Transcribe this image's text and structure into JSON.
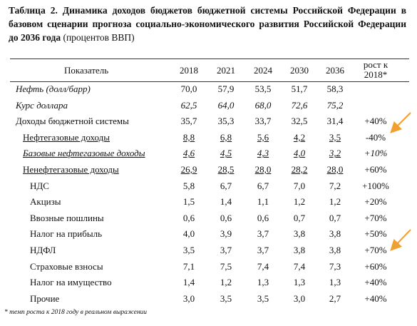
{
  "header": {
    "title": "Таблица 2. Динамика доходов бюджетов бюджетной системы Российской Федерации в базовом сценарии прогноза социально-экономического развития Российской Федерации до 2036 года",
    "units": "(процентов ВВП)"
  },
  "table": {
    "columns": [
      "Показатель",
      "2018",
      "2021",
      "2024",
      "2030",
      "2036",
      "рост к 2018*"
    ],
    "rows": [
      {
        "label": "Нефть (долл/барр)",
        "values": [
          "70,0",
          "57,9",
          "53,5",
          "51,7",
          "58,3"
        ]
      },
      {
        "label": "Курс доллара",
        "values": [
          "62,5",
          "64,0",
          "68,0",
          "72,6",
          "75,2"
        ]
      },
      {
        "label": "Доходы бюджетной системы",
        "values": [
          "35,7",
          "35,3",
          "33,7",
          "32,5",
          "31,4"
        ],
        "growth": "+40%"
      },
      {
        "label": "Нефтегазовые доходы",
        "values": [
          "8,8",
          "6,8",
          "5,6",
          "4,2",
          "3,5"
        ],
        "growth": "-40%"
      },
      {
        "label": "Базовые нефтегазовые доходы",
        "values": [
          "4,6",
          "4,5",
          "4,3",
          "4,0",
          "3,2"
        ],
        "growth": "+10%"
      },
      {
        "label": "Ненефтегазовые доходы",
        "values": [
          "26,9",
          "28,5",
          "28,0",
          "28,2",
          "28,0"
        ],
        "growth": "+60%"
      },
      {
        "label": "НДС",
        "values": [
          "5,8",
          "6,7",
          "6,7",
          "7,0",
          "7,2"
        ],
        "growth": "+100%"
      },
      {
        "label": "Акцизы",
        "values": [
          "1,5",
          "1,4",
          "1,1",
          "1,2",
          "1,2"
        ],
        "growth": "+20%"
      },
      {
        "label": "Ввозные пошлины",
        "values": [
          "0,6",
          "0,6",
          "0,6",
          "0,7",
          "0,7"
        ],
        "growth": "+70%"
      },
      {
        "label": "Налог на прибыль",
        "values": [
          "4,0",
          "3,9",
          "3,7",
          "3,8",
          "3,8"
        ],
        "growth": "+50%"
      },
      {
        "label": "НДФЛ",
        "values": [
          "3,5",
          "3,7",
          "3,7",
          "3,8",
          "3,8"
        ],
        "growth": "+70%"
      },
      {
        "label": "Страховые взносы",
        "values": [
          "7,1",
          "7,5",
          "7,4",
          "7,4",
          "7,3"
        ],
        "growth": "+60%"
      },
      {
        "label": "Налог на имущество",
        "values": [
          "1,4",
          "1,2",
          "1,3",
          "1,3",
          "1,3"
        ],
        "growth": "+40%"
      },
      {
        "label": "Прочие",
        "values": [
          "3,0",
          "3,5",
          "3,5",
          "3,0",
          "2,7"
        ],
        "growth": "+40%"
      }
    ]
  },
  "footnote": "* темп роста к 2018 году в реальном выражении"
}
